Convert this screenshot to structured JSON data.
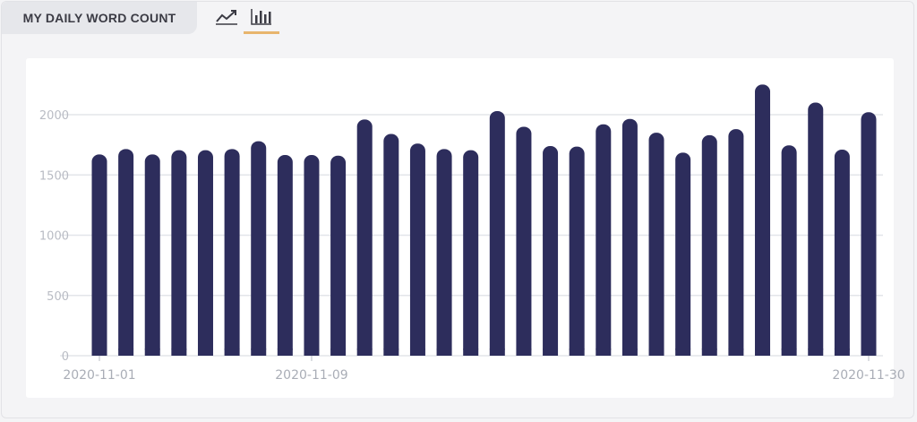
{
  "header": {
    "title": "MY DAILY WORD COUNT",
    "line_view_icon": "line-chart-icon",
    "bar_view_icon": "bar-chart-icon",
    "active_view": "bar"
  },
  "colors": {
    "bar": "#2d2d5c",
    "grid": "#e3e5ea",
    "tick_text": "#b9bcc4",
    "active_underline": "#e8b56d"
  },
  "chart_data": {
    "type": "bar",
    "title": "",
    "xlabel": "",
    "ylabel": "",
    "ylim": [
      0,
      2250
    ],
    "yticks": [
      0,
      500,
      1000,
      1500,
      2000
    ],
    "grid": true,
    "legend": "none",
    "x_tick_labels": [
      "2020-11-01",
      "2020-11-09",
      "2020-11-30"
    ],
    "categories": [
      "2020-11-01",
      "2020-11-02",
      "2020-11-03",
      "2020-11-04",
      "2020-11-05",
      "2020-11-06",
      "2020-11-07",
      "2020-11-08",
      "2020-11-09",
      "2020-11-10",
      "2020-11-11",
      "2020-11-12",
      "2020-11-13",
      "2020-11-14",
      "2020-11-15",
      "2020-11-16",
      "2020-11-17",
      "2020-11-18",
      "2020-11-19",
      "2020-11-20",
      "2020-11-21",
      "2020-11-22",
      "2020-11-23",
      "2020-11-24",
      "2020-11-25",
      "2020-11-26",
      "2020-11-27",
      "2020-11-28",
      "2020-11-29",
      "2020-11-30"
    ],
    "values": [
      1670,
      1715,
      1670,
      1705,
      1705,
      1715,
      1780,
      1665,
      1665,
      1660,
      1960,
      1840,
      1760,
      1715,
      1705,
      2030,
      1900,
      1740,
      1735,
      1920,
      1965,
      1850,
      1685,
      1830,
      1880,
      2250,
      1745,
      2100,
      1710,
      2020
    ]
  }
}
